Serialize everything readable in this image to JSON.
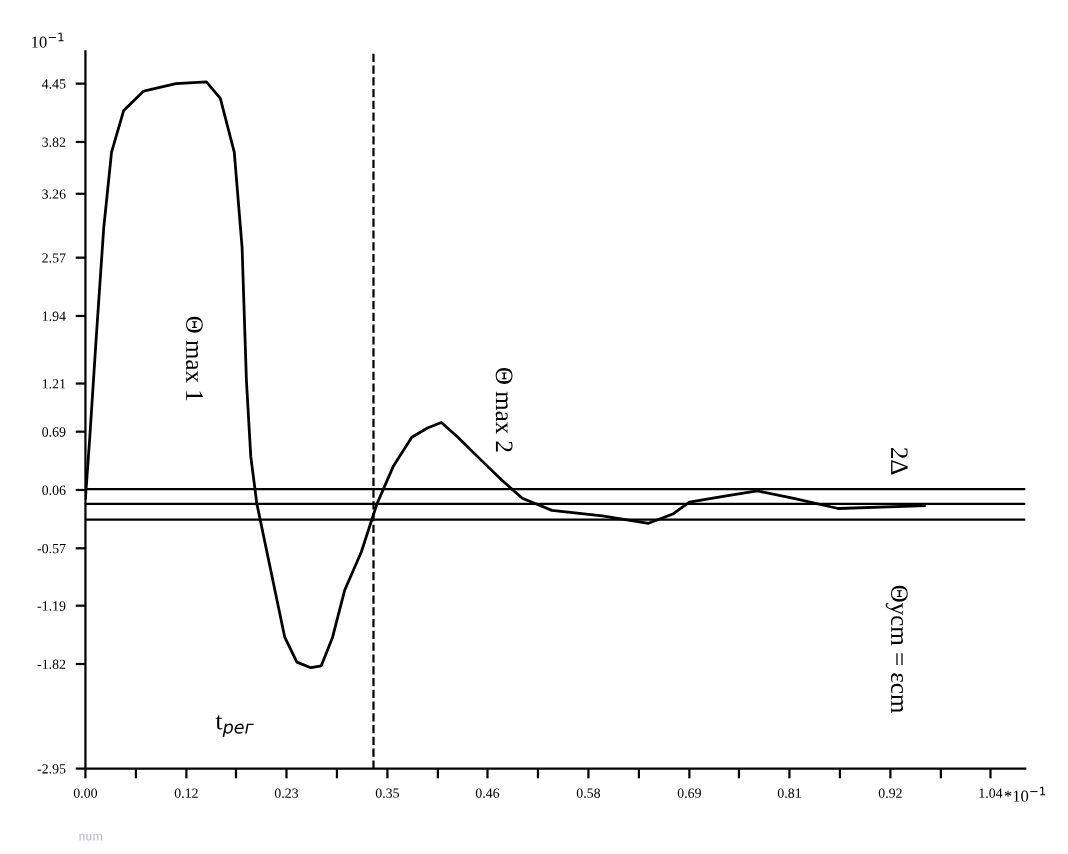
{
  "chart_data": {
    "type": "line",
    "ylabel": "10$^{−1}$",
    "xlabel": "*10$^{−1}$",
    "x": [
      0,
      0.005,
      0.012,
      0.021,
      0.03,
      0.044,
      0.067,
      0.104,
      0.139,
      0.155,
      0.171,
      0.18,
      0.185,
      0.19,
      0.197,
      0.213,
      0.229,
      0.243,
      0.259,
      0.271,
      0.284,
      0.298,
      0.317,
      0.335,
      0.354,
      0.375,
      0.393,
      0.409,
      0.428,
      0.455,
      0.478,
      0.502,
      0.536,
      0.594,
      0.647,
      0.675,
      0.694,
      0.733,
      0.772,
      0.814,
      0.865,
      0.964
    ],
    "series": [
      {
        "color": "#000000",
        "values": [
          -0.03,
          0.63,
          1.65,
          2.89,
          3.71,
          4.16,
          4.37,
          4.45,
          4.47,
          4.29,
          3.71,
          2.68,
          1.24,
          0.42,
          -0.09,
          -0.81,
          -1.53,
          -1.8,
          -1.86,
          -1.84,
          -1.53,
          -1.02,
          -0.61,
          -0.09,
          0.32,
          0.63,
          0.73,
          0.79,
          0.63,
          0.38,
          0.17,
          -0.03,
          -0.16,
          -0.22,
          -0.3,
          -0.2,
          -0.07,
          -0.01,
          0.05,
          -0.03,
          -0.14,
          -0.11
        ]
      }
    ],
    "xlim": [
      0,
      1.08
    ],
    "ylim": [
      -2.95,
      4.8
    ],
    "xticks": [
      {
        "value": 0,
        "label": "0.00"
      },
      {
        "value": 0.058,
        "label": null
      },
      {
        "value": 0.116,
        "label": "0.12"
      },
      {
        "value": 0.173,
        "label": null
      },
      {
        "value": 0.231,
        "label": "0.23"
      },
      {
        "value": 0.289,
        "label": null
      },
      {
        "value": 0.347,
        "label": "0.35"
      },
      {
        "value": 0.405,
        "label": null
      },
      {
        "value": 0.462,
        "label": "0.46"
      },
      {
        "value": 0.52,
        "label": null
      },
      {
        "value": 0.578,
        "label": "0.58"
      },
      {
        "value": 0.636,
        "label": null
      },
      {
        "value": 0.694,
        "label": "0.69"
      },
      {
        "value": 0.751,
        "label": null
      },
      {
        "value": 0.809,
        "label": "0.81"
      },
      {
        "value": 0.867,
        "label": null
      },
      {
        "value": 0.925,
        "label": "0.92"
      },
      {
        "value": 0.983,
        "label": null
      },
      {
        "value": 1.04,
        "label": "1.04"
      }
    ],
    "yticks": [
      4.45,
      3.82,
      3.26,
      2.57,
      1.94,
      1.21,
      0.69,
      0.06,
      -0.57,
      -1.19,
      -1.82,
      -2.95
    ],
    "ref_lines": [
      {
        "axis": "y",
        "value": -0.09,
        "color": "#000000",
        "line_style": "solid"
      },
      {
        "axis": "x",
        "value": 0.331,
        "color": "#000000",
        "line_style": "dashed"
      },
      {
        "axis": "y",
        "value": 0.07,
        "color": "#000000",
        "line_style": "solid"
      },
      {
        "axis": "y",
        "value": -0.26,
        "color": "#000000",
        "line_style": "solid"
      }
    ],
    "annotations": [
      "Θ max 1",
      "Θ max 2",
      "2Δ",
      "Θycm = εcm",
      "t$_{рег}$",
      "num"
    ],
    "grid": false,
    "legend": false,
    "marker": "none",
    "line_style": "solid"
  }
}
